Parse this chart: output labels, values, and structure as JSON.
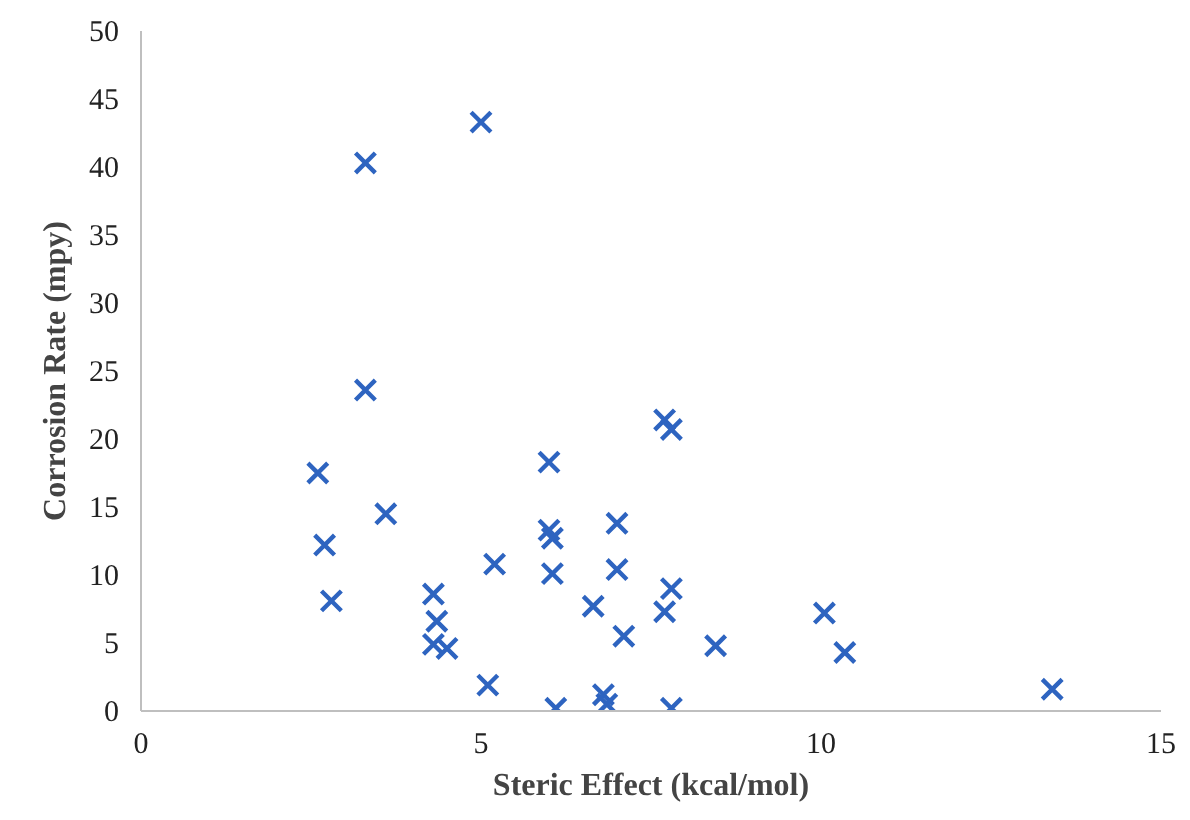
{
  "chart_data": {
    "type": "scatter",
    "xlabel": "Steric Effect (kcal/mol)",
    "ylabel": "Corrosion Rate (mpy)",
    "marker": "cross",
    "grid": false,
    "xlim": [
      0,
      15
    ],
    "xticks": [
      0,
      5,
      10,
      15
    ],
    "ylim": [
      0,
      50
    ],
    "yticks": [
      0,
      5,
      10,
      15,
      20,
      25,
      30,
      35,
      40,
      45,
      50
    ],
    "series": [
      {
        "color": "#2e64c0",
        "x": [
          3.3,
          5.0,
          2.6,
          3.3,
          2.7,
          2.8,
          3.6,
          4.3,
          4.35,
          4.3,
          4.5,
          5.1,
          5.2,
          6.0,
          6.0,
          6.05,
          6.05,
          6.1,
          6.65,
          6.8,
          6.85,
          7.0,
          7.0,
          7.1,
          7.7,
          7.8,
          7.8,
          7.7,
          7.8,
          8.45,
          10.05,
          10.35,
          13.4
        ],
        "values": [
          40.3,
          43.3,
          17.5,
          23.6,
          12.2,
          8.1,
          14.5,
          8.6,
          6.6,
          4.9,
          4.6,
          1.9,
          10.8,
          18.3,
          13.3,
          12.7,
          10.1,
          0.2,
          7.7,
          1.2,
          0.5,
          13.8,
          10.4,
          5.5,
          21.4,
          20.7,
          9.0,
          7.3,
          0.2,
          4.8,
          7.2,
          4.3,
          1.6
        ]
      }
    ]
  }
}
